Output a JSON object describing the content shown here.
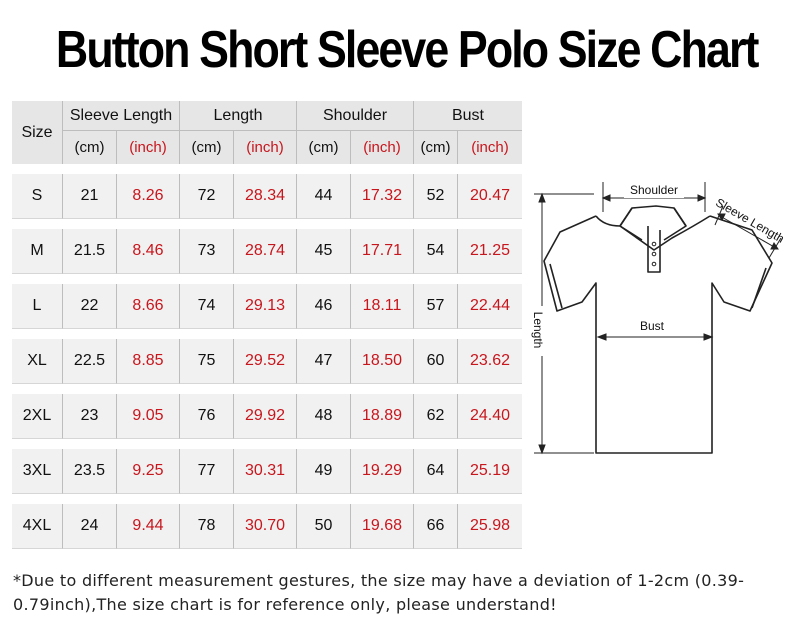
{
  "title": "Button Short Sleeve Polo Size Chart",
  "table": {
    "size_header": "Size",
    "groups": [
      "Sleeve Length",
      "Length",
      "Shoulder",
      "Bust"
    ],
    "unit_cm": "(cm)",
    "unit_inch": "(inch)",
    "rows": [
      {
        "size": "S",
        "sleeve_cm": "21",
        "sleeve_in": "8.26",
        "length_cm": "72",
        "length_in": "28.34",
        "shoulder_cm": "44",
        "shoulder_in": "17.32",
        "bust_cm": "52",
        "bust_in": "20.47"
      },
      {
        "size": "M",
        "sleeve_cm": "21.5",
        "sleeve_in": "8.46",
        "length_cm": "73",
        "length_in": "28.74",
        "shoulder_cm": "45",
        "shoulder_in": "17.71",
        "bust_cm": "54",
        "bust_in": "21.25"
      },
      {
        "size": "L",
        "sleeve_cm": "22",
        "sleeve_in": "8.66",
        "length_cm": "74",
        "length_in": "29.13",
        "shoulder_cm": "46",
        "shoulder_in": "18.11",
        "bust_cm": "57",
        "bust_in": "22.44"
      },
      {
        "size": "XL",
        "sleeve_cm": "22.5",
        "sleeve_in": "8.85",
        "length_cm": "75",
        "length_in": "29.52",
        "shoulder_cm": "47",
        "shoulder_in": "18.50",
        "bust_cm": "60",
        "bust_in": "23.62"
      },
      {
        "size": "2XL",
        "sleeve_cm": "23",
        "sleeve_in": "9.05",
        "length_cm": "76",
        "length_in": "29.92",
        "shoulder_cm": "48",
        "shoulder_in": "18.89",
        "bust_cm": "62",
        "bust_in": "24.40"
      },
      {
        "size": "3XL",
        "sleeve_cm": "23.5",
        "sleeve_in": "9.25",
        "length_cm": "77",
        "length_in": "30.31",
        "shoulder_cm": "49",
        "shoulder_in": "19.29",
        "bust_cm": "64",
        "bust_in": "25.19"
      },
      {
        "size": "4XL",
        "sleeve_cm": "24",
        "sleeve_in": "9.44",
        "length_cm": "78",
        "length_in": "30.70",
        "shoulder_cm": "50",
        "shoulder_in": "19.68",
        "bust_cm": "66",
        "bust_in": "25.98"
      }
    ]
  },
  "diagram": {
    "shoulder": "Shoulder",
    "sleeve_length": "Sleeve Length",
    "length": "Length",
    "bust": "Bust"
  },
  "note": "*Due to different measurement gestures, the size may have a deviation of 1-2cm (0.39-0.79inch),The size chart is for reference only, please understand!",
  "colors": {
    "inch_text": "#c8161d",
    "header_bg": "#e6e6e6",
    "row_bg": "#f1f1f1"
  }
}
